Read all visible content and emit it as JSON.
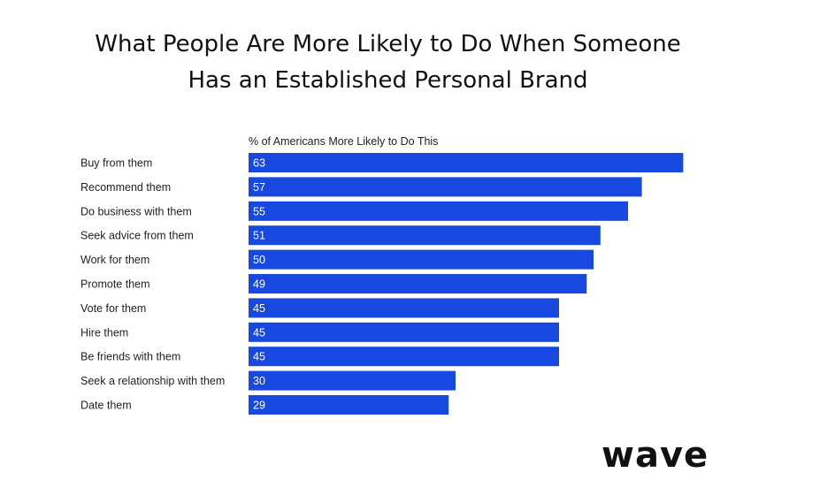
{
  "title_lines": [
    "What People Are More Likely to Do When Someone",
    "Has an Established Personal Brand"
  ],
  "logo_text": "wave",
  "chart_data": {
    "type": "bar",
    "orientation": "horizontal",
    "title": "What People Are More Likely to Do When Someone Has an Established Personal Brand",
    "series_label": "% of Americans More Likely to Do This",
    "categories": [
      "Buy from them",
      "Recommend them",
      "Do business with them",
      "Seek advice from them",
      "Work for them",
      "Promote them",
      "Vote for them",
      "Hire them",
      "Be friends with them",
      "Seek a relationship with them",
      "Date them"
    ],
    "values": [
      63,
      57,
      55,
      51,
      50,
      49,
      45,
      45,
      45,
      30,
      29
    ],
    "bar_color": "#1748e0",
    "value_label_color": "#ffffff",
    "grid": false
  }
}
